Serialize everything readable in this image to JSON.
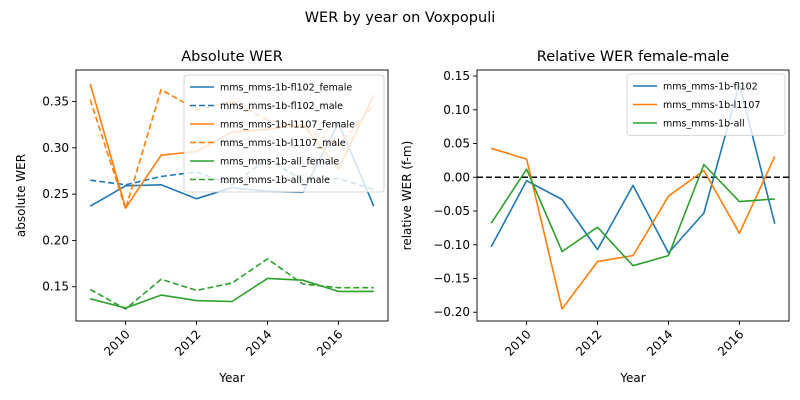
{
  "suptitle": "WER by year on Voxpopuli",
  "colors": {
    "blue": "#1f77b4",
    "orange": "#ff7f0e",
    "green": "#2ca02c"
  },
  "chart_data": [
    {
      "type": "line",
      "title": "Absolute WER",
      "xlabel": "Year",
      "ylabel": "absolute WER",
      "xlim": [
        2008.6,
        2017.4
      ],
      "ylim": [
        0.113,
        0.384
      ],
      "xticks": [
        2010,
        2012,
        2014,
        2016
      ],
      "yticks": [
        0.15,
        0.2,
        0.25,
        0.3,
        0.35
      ],
      "yticklabels": [
        "0.15",
        "0.20",
        "0.25",
        "0.30",
        "0.35"
      ],
      "legend": "top-right",
      "x": [
        2009,
        2010,
        2011,
        2012,
        2013,
        2014,
        2015,
        2016,
        2017
      ],
      "series": [
        {
          "name": "mms_mms-1b-fl102_female",
          "color": "blue",
          "dash": false,
          "values": [
            0.237,
            0.259,
            0.26,
            0.245,
            0.257,
            0.253,
            0.252,
            0.327,
            0.237
          ]
        },
        {
          "name": "mms_mms-1b-fl102_male",
          "color": "blue",
          "dash": true,
          "values": [
            0.265,
            0.26,
            0.269,
            0.274,
            0.26,
            0.288,
            0.265,
            0.267,
            0.255
          ]
        },
        {
          "name": "mms_mms-1b-l1107_female",
          "color": "orange",
          "dash": false,
          "values": [
            0.369,
            0.235,
            0.292,
            0.296,
            0.317,
            0.32,
            0.325,
            0.277,
            0.357
          ]
        },
        {
          "name": "mms_mms-1b-l1107_male",
          "color": "orange",
          "dash": true,
          "values": [
            0.352,
            0.234,
            0.363,
            0.341,
            0.35,
            0.33,
            0.322,
            0.302,
            0.346
          ]
        },
        {
          "name": "mms_mms-1b-all_female",
          "color": "green",
          "dash": false,
          "values": [
            0.137,
            0.127,
            0.141,
            0.135,
            0.134,
            0.159,
            0.157,
            0.145,
            0.145
          ]
        },
        {
          "name": "mms_mms-1b-all_male",
          "color": "green",
          "dash": true,
          "values": [
            0.147,
            0.126,
            0.158,
            0.146,
            0.154,
            0.18,
            0.153,
            0.149,
            0.149
          ]
        }
      ]
    },
    {
      "type": "line",
      "title": "Relative WER female-male",
      "xlabel": "Year",
      "ylabel": "relative WER (f-m)",
      "xlim": [
        2008.6,
        2017.4
      ],
      "ylim": [
        -0.213,
        0.159
      ],
      "xticks": [
        2010,
        2012,
        2014,
        2016
      ],
      "yticks": [
        -0.2,
        -0.15,
        -0.1,
        -0.05,
        0.0,
        0.05,
        0.1,
        0.15
      ],
      "yticklabels": [
        "−0.20",
        "−0.15",
        "−0.10",
        "−0.05",
        "0.00",
        "0.05",
        "0.10",
        "0.15"
      ],
      "hline": 0.0,
      "legend": "top-right",
      "x": [
        2009,
        2010,
        2011,
        2012,
        2013,
        2014,
        2015,
        2016,
        2017
      ],
      "series": [
        {
          "name": "mms_mms-1b-fl102",
          "color": "blue",
          "dash": false,
          "values": [
            -0.103,
            -0.005,
            -0.033,
            -0.107,
            -0.012,
            -0.112,
            -0.053,
            0.138,
            -0.069
          ]
        },
        {
          "name": "mms_mms-1b-l1107",
          "color": "orange",
          "dash": false,
          "values": [
            0.043,
            0.027,
            -0.195,
            -0.125,
            -0.116,
            -0.028,
            0.01,
            -0.083,
            0.031
          ]
        },
        {
          "name": "mms_mms-1b-all",
          "color": "green",
          "dash": false,
          "values": [
            -0.068,
            0.012,
            -0.11,
            -0.074,
            -0.131,
            -0.116,
            0.019,
            -0.036,
            -0.032
          ]
        }
      ]
    }
  ]
}
